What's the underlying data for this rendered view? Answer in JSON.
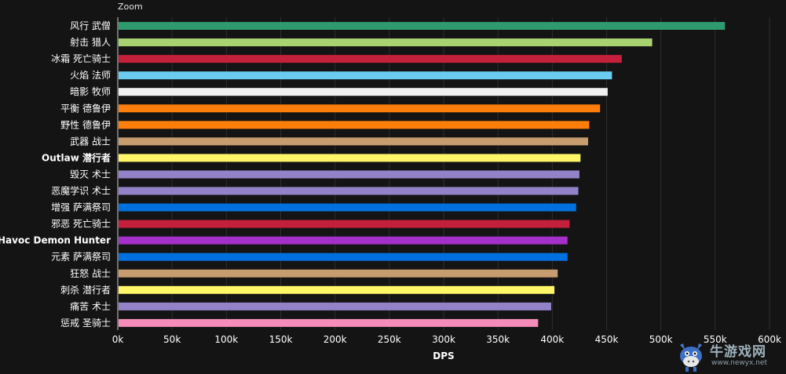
{
  "zoom_label": "Zoom",
  "watermark": {
    "name": "牛游戏网",
    "url": "www.newyx.net"
  },
  "chart_data": {
    "type": "bar",
    "orientation": "horizontal",
    "title": "",
    "xlabel": "DPS",
    "ylabel": "",
    "xlim": [
      0,
      600000
    ],
    "x_ticks": [
      0,
      50000,
      100000,
      150000,
      200000,
      250000,
      300000,
      350000,
      400000,
      450000,
      500000,
      550000,
      600000
    ],
    "x_tick_labels": [
      "0k",
      "50k",
      "100k",
      "150k",
      "200k",
      "250k",
      "300k",
      "350k",
      "400k",
      "450k",
      "500k",
      "550k",
      "600k"
    ],
    "grid": true,
    "categories": [
      "风行 武僧",
      "射击 猎人",
      "冰霜 死亡骑士",
      "火焰 法师",
      "暗影 牧师",
      "平衡 德鲁伊",
      "野性 德鲁伊",
      "武器 战士",
      "Outlaw 潜行者",
      "毁灭 术士",
      "恶魔学识 术士",
      "增强 萨满祭司",
      "邪恶 死亡骑士",
      "Havoc Demon Hunter",
      "元素 萨满祭司",
      "狂怒 战士",
      "刺杀 潜行者",
      "痛苦 术士",
      "惩戒 圣骑士"
    ],
    "bold_categories": [
      "Outlaw 潜行者",
      "Havoc Demon Hunter"
    ],
    "values": [
      559000,
      492000,
      464000,
      455000,
      451000,
      444000,
      434000,
      433000,
      426000,
      425000,
      424000,
      422000,
      416000,
      414000,
      414000,
      405000,
      402000,
      399000,
      387000
    ],
    "colors": [
      "#2e9a6e",
      "#a9d271",
      "#c41f3b",
      "#69ccf0",
      "#f0f0f0",
      "#ff7d0a",
      "#ff7d0a",
      "#c79c6e",
      "#fff569",
      "#9482c9",
      "#9482c9",
      "#0070de",
      "#c41f3b",
      "#a330c9",
      "#0070de",
      "#c79c6e",
      "#fff569",
      "#9482c9",
      "#f58cba"
    ]
  }
}
